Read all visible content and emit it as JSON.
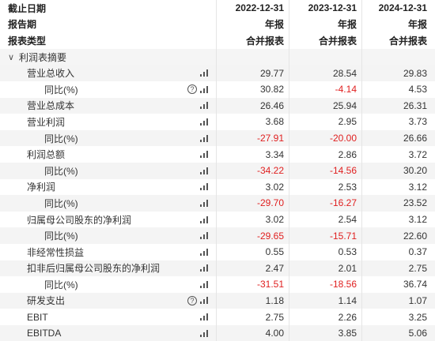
{
  "header": {
    "rows": [
      {
        "label": "截止日期",
        "values": [
          "2022-12-31",
          "2023-12-31",
          "2024-12-31"
        ]
      },
      {
        "label": "报告期",
        "values": [
          "年报",
          "年报",
          "年报"
        ]
      },
      {
        "label": "报表类型",
        "values": [
          "合并报表",
          "合并报表",
          "合并报表"
        ]
      }
    ]
  },
  "section": {
    "label": "利润表摘要",
    "chevron": "chevron-down-icon"
  },
  "rows": [
    {
      "label": "营业总收入",
      "indent": 1,
      "help": false,
      "values": [
        "29.77",
        "28.54",
        "29.83"
      ],
      "neg": [
        false,
        false,
        false
      ]
    },
    {
      "label": "同比(%)",
      "indent": 2,
      "help": true,
      "values": [
        "30.82",
        "-4.14",
        "4.53"
      ],
      "neg": [
        false,
        true,
        false
      ]
    },
    {
      "label": "营业总成本",
      "indent": 1,
      "help": false,
      "values": [
        "26.46",
        "25.94",
        "26.31"
      ],
      "neg": [
        false,
        false,
        false
      ]
    },
    {
      "label": "营业利润",
      "indent": 1,
      "help": false,
      "values": [
        "3.68",
        "2.95",
        "3.73"
      ],
      "neg": [
        false,
        false,
        false
      ]
    },
    {
      "label": "同比(%)",
      "indent": 2,
      "help": false,
      "values": [
        "-27.91",
        "-20.00",
        "26.66"
      ],
      "neg": [
        true,
        true,
        false
      ]
    },
    {
      "label": "利润总额",
      "indent": 1,
      "help": false,
      "values": [
        "3.34",
        "2.86",
        "3.72"
      ],
      "neg": [
        false,
        false,
        false
      ]
    },
    {
      "label": "同比(%)",
      "indent": 2,
      "help": false,
      "values": [
        "-34.22",
        "-14.56",
        "30.20"
      ],
      "neg": [
        true,
        true,
        false
      ]
    },
    {
      "label": "净利润",
      "indent": 1,
      "help": false,
      "values": [
        "3.02",
        "2.53",
        "3.12"
      ],
      "neg": [
        false,
        false,
        false
      ]
    },
    {
      "label": "同比(%)",
      "indent": 2,
      "help": false,
      "values": [
        "-29.70",
        "-16.27",
        "23.52"
      ],
      "neg": [
        true,
        true,
        false
      ]
    },
    {
      "label": "归属母公司股东的净利润",
      "indent": 1,
      "help": false,
      "values": [
        "3.02",
        "2.54",
        "3.12"
      ],
      "neg": [
        false,
        false,
        false
      ]
    },
    {
      "label": "同比(%)",
      "indent": 2,
      "help": false,
      "values": [
        "-29.65",
        "-15.71",
        "22.60"
      ],
      "neg": [
        true,
        true,
        false
      ]
    },
    {
      "label": "非经常性损益",
      "indent": 1,
      "help": false,
      "values": [
        "0.55",
        "0.53",
        "0.37"
      ],
      "neg": [
        false,
        false,
        false
      ]
    },
    {
      "label": "扣非后归属母公司股东的净利润",
      "indent": 1,
      "help": false,
      "values": [
        "2.47",
        "2.01",
        "2.75"
      ],
      "neg": [
        false,
        false,
        false
      ]
    },
    {
      "label": "同比(%)",
      "indent": 2,
      "help": false,
      "values": [
        "-31.51",
        "-18.56",
        "36.74"
      ],
      "neg": [
        true,
        true,
        false
      ]
    },
    {
      "label": "研发支出",
      "indent": 1,
      "help": true,
      "values": [
        "1.18",
        "1.14",
        "1.07"
      ],
      "neg": [
        false,
        false,
        false
      ]
    },
    {
      "label": "EBIT",
      "indent": 1,
      "help": false,
      "values": [
        "2.75",
        "2.26",
        "3.25"
      ],
      "neg": [
        false,
        false,
        false
      ]
    },
    {
      "label": "EBITDA",
      "indent": 1,
      "help": false,
      "values": [
        "4.00",
        "3.85",
        "5.06"
      ],
      "neg": [
        false,
        false,
        false
      ]
    }
  ],
  "colors": {
    "negative": "#e02020",
    "shade": "#f4f4f4"
  }
}
